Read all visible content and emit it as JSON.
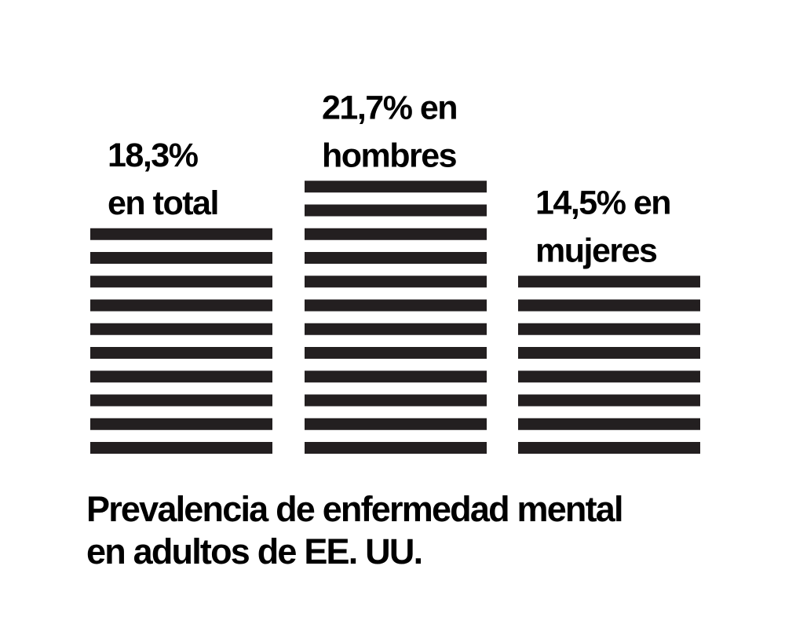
{
  "chart_data": {
    "type": "bar",
    "categories": [
      "total",
      "hombres",
      "mujeres"
    ],
    "values": [
      18.3,
      21.7,
      14.5
    ],
    "value_unit": "%",
    "data_labels": [
      [
        "18,3%",
        "en total"
      ],
      [
        "21,7% en",
        "hombres"
      ],
      [
        "14,5% en",
        "mujeres"
      ]
    ],
    "title_lines": [
      "Prevalencia de enfermedad mental",
      "en adultos de EE. UU."
    ],
    "bar_style": "horizontal-stripes",
    "stripe_count": [
      10,
      12,
      8
    ],
    "grid": false,
    "legend": "none",
    "colors": {
      "bars": "#231f20",
      "text": "#000000",
      "background": "#ffffff"
    }
  }
}
